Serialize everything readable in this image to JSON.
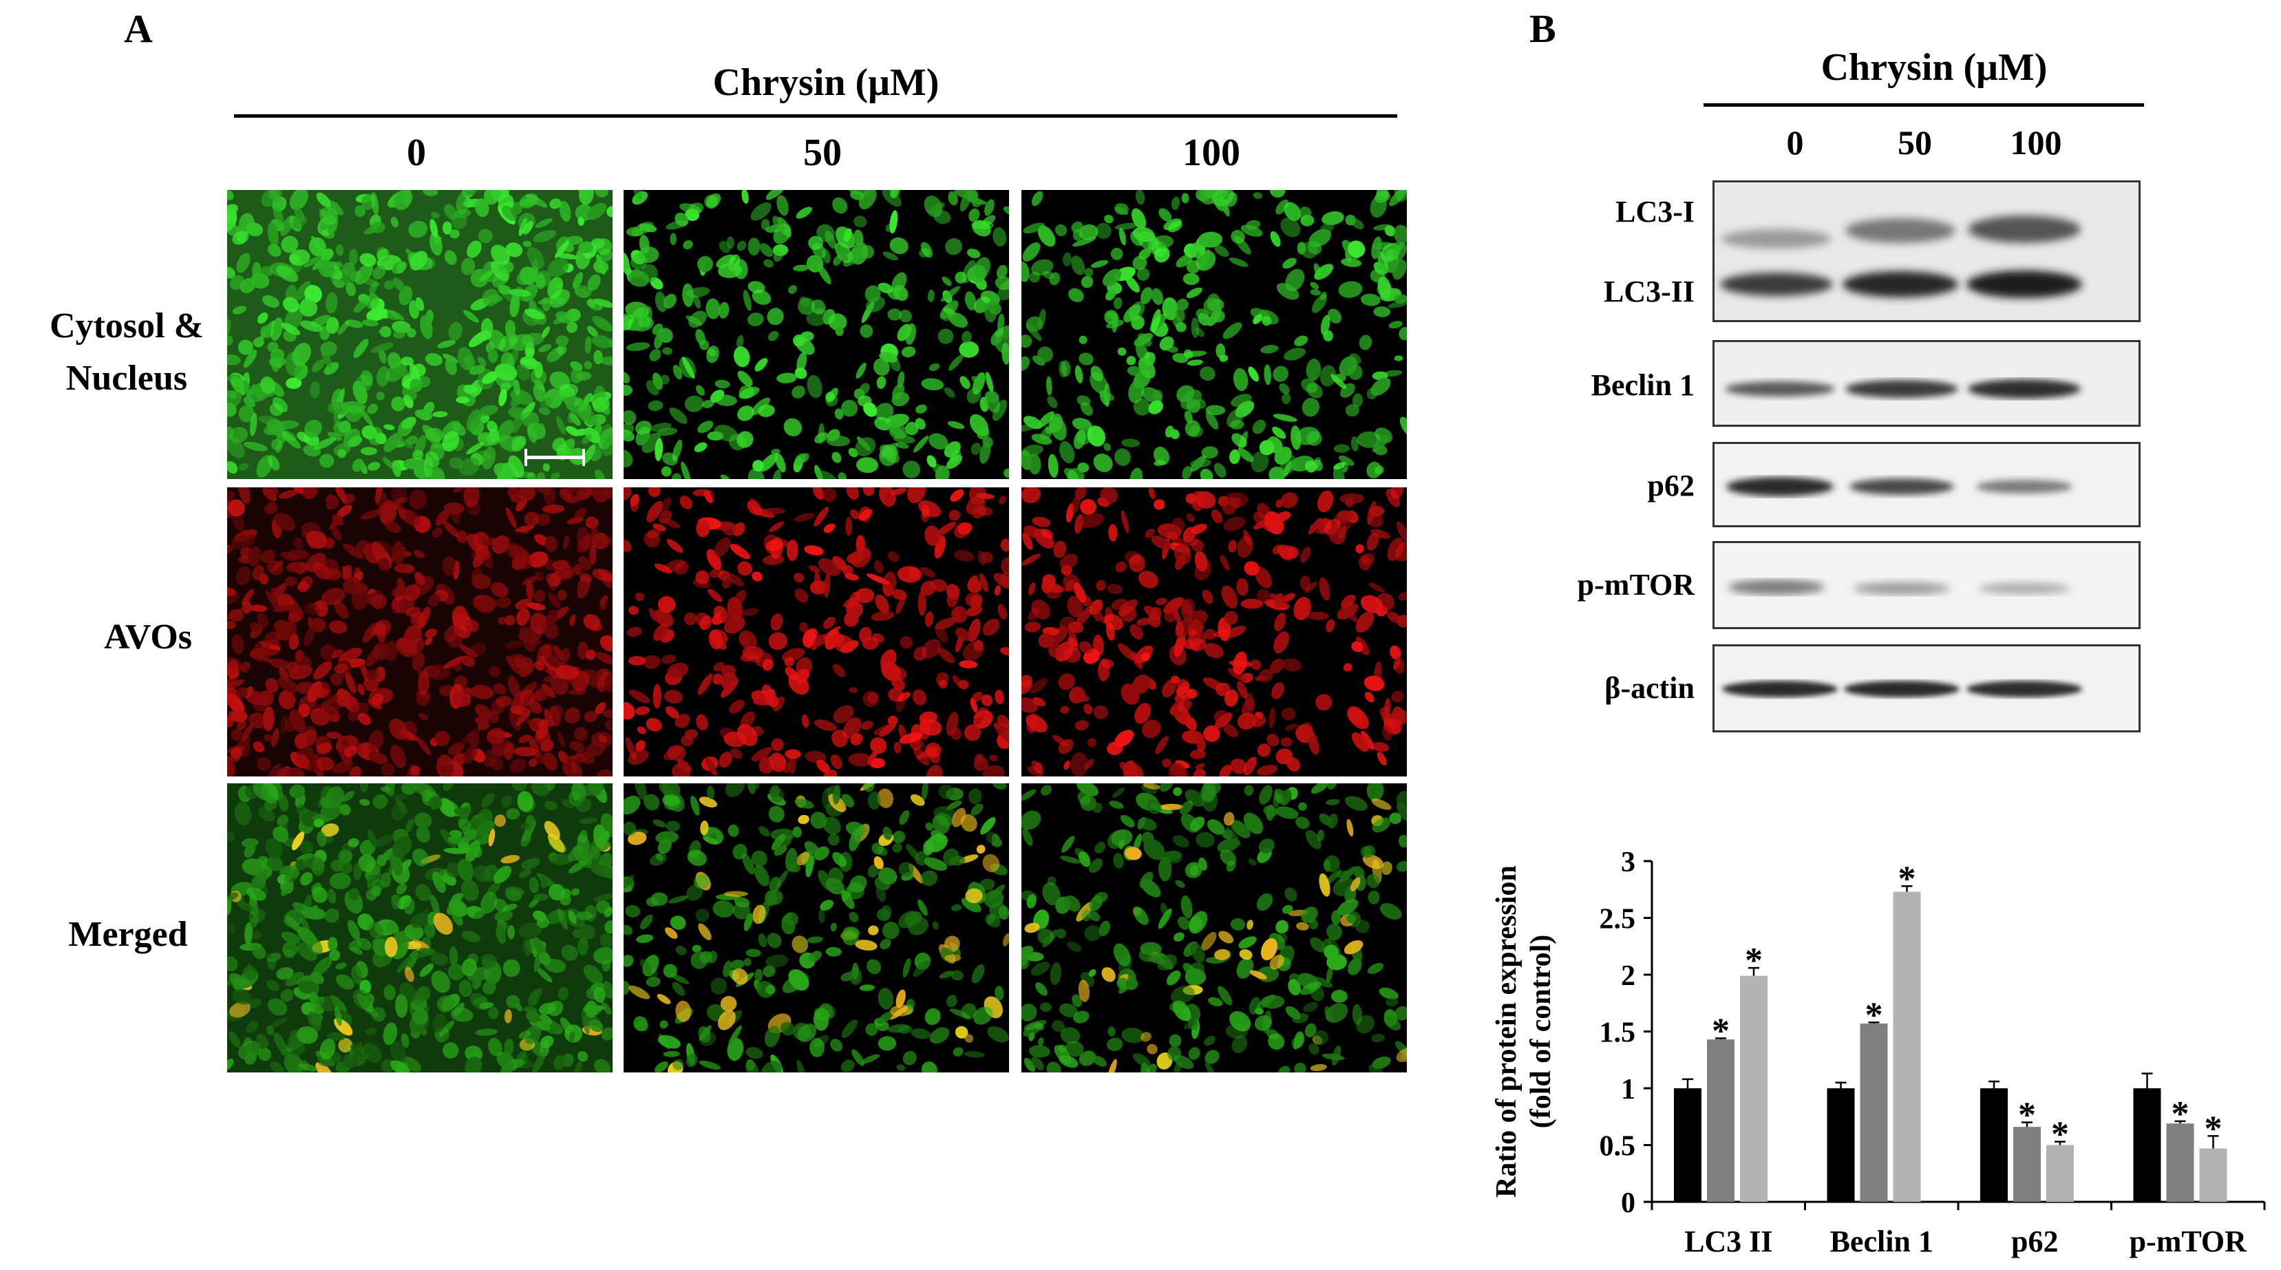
{
  "panel_a": {
    "letter": "A",
    "title": "Chrysin (μM)",
    "concentrations": [
      "0",
      "50",
      "100"
    ],
    "rows": [
      {
        "label_line1": "Cytosol &",
        "label_line2": "Nucleus"
      },
      {
        "label_line1": "AVOs",
        "label_line2": ""
      },
      {
        "label_line1": "Merged",
        "label_line2": ""
      }
    ]
  },
  "panel_b": {
    "letter": "B",
    "title": "Chrysin (μM)",
    "concentrations": [
      "0",
      "50",
      "100"
    ],
    "blots": [
      {
        "label_top": "LC3-I",
        "label_bottom": "LC3-II"
      },
      {
        "label": "Beclin 1"
      },
      {
        "label": "p62"
      },
      {
        "label": "p-mTOR"
      },
      {
        "label": "β-actin"
      }
    ]
  },
  "chart_data": {
    "type": "bar",
    "title": "",
    "xlabel": "",
    "ylabel_line1": "Ratio of protein expression",
    "ylabel_line2": "(fold of control)",
    "ylim": [
      0,
      3
    ],
    "yticks": [
      "0",
      "0.5",
      "1",
      "1.5",
      "2",
      "2.5",
      "3"
    ],
    "categories": [
      "LC3 II",
      "Beclin 1",
      "p62",
      "p-mTOR"
    ],
    "series": [
      {
        "color": "#000000",
        "values": [
          1.0,
          1.0,
          1.0,
          1.0
        ],
        "errors": [
          0.08,
          0.05,
          0.06,
          0.13
        ],
        "significant": [
          false,
          false,
          false,
          false
        ]
      },
      {
        "color": "#7f7f7f",
        "values": [
          1.43,
          1.57,
          0.66,
          0.69
        ],
        "errors": [
          0.01,
          0.01,
          0.04,
          0.02
        ],
        "significant": [
          true,
          true,
          true,
          true
        ]
      },
      {
        "color": "#b3b3b3",
        "values": [
          1.99,
          2.73,
          0.5,
          0.47
        ],
        "errors": [
          0.07,
          0.05,
          0.03,
          0.11
        ],
        "significant": [
          true,
          true,
          true,
          true
        ]
      }
    ],
    "significance_marker": "*",
    "grid": false,
    "legend": "none"
  }
}
